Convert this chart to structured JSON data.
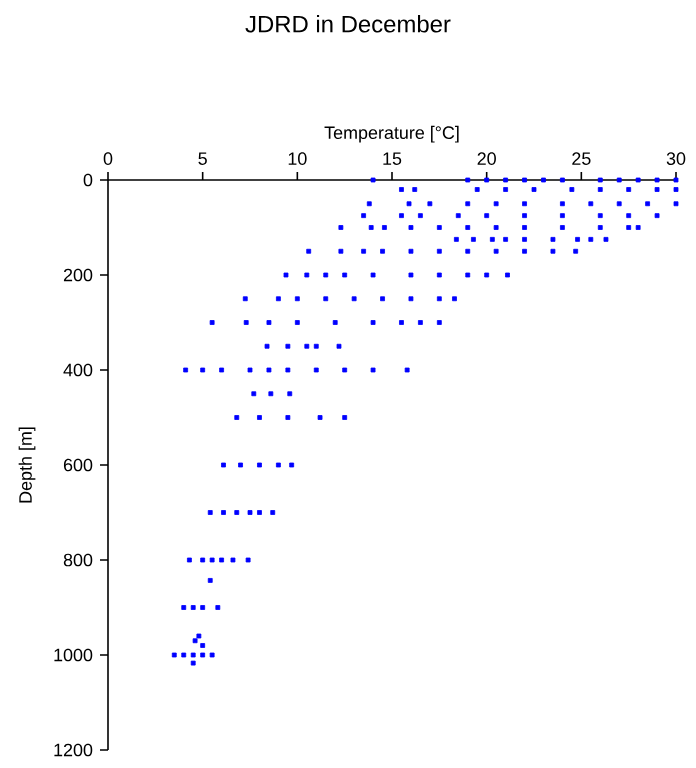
{
  "chart_data": {
    "type": "scatter",
    "title": "JDRD in December",
    "xlabel": "Temperature [°C]",
    "ylabel": "Depth [m]",
    "xlim": [
      0,
      30
    ],
    "ylim": [
      1200,
      0
    ],
    "xticks": [
      0,
      5,
      10,
      15,
      20,
      25,
      30
    ],
    "yticks": [
      0,
      200,
      400,
      600,
      800,
      1000,
      1200
    ],
    "marker": "square",
    "series": [
      {
        "color": "#0000ff",
        "x": [
          14,
          19,
          20,
          21,
          22,
          23,
          24,
          26,
          27,
          28,
          29,
          30,
          15.5,
          16.2,
          19.5,
          21,
          22.5,
          24.5,
          26,
          27.5,
          29,
          30,
          13.8,
          15.9,
          17,
          19,
          20.5,
          22,
          24,
          25.5,
          27,
          28.5,
          30,
          13.5,
          15.5,
          16.5,
          18.5,
          20,
          22,
          24,
          26,
          27.5,
          29,
          12.3,
          13.9,
          14.6,
          16,
          17.5,
          19,
          20.5,
          22,
          24,
          26,
          27.5,
          28,
          18.4,
          19.3,
          20.3,
          21,
          22,
          23.5,
          24.8,
          25.5,
          26.3,
          10.6,
          12.3,
          13.5,
          14.5,
          16,
          17.5,
          19,
          20.5,
          22,
          23.5,
          24.7,
          9.4,
          10.5,
          11.5,
          12.5,
          14,
          16,
          17.5,
          19,
          20,
          21.1,
          7.25,
          9,
          10,
          11.5,
          13,
          14.5,
          16,
          17.5,
          18.3,
          5.5,
          7.3,
          8.5,
          10,
          12,
          14,
          15.5,
          16.5,
          17.5,
          8.4,
          9.5,
          10.5,
          11,
          12.2,
          4.1,
          5,
          6,
          7.5,
          8.5,
          9.5,
          11,
          12.5,
          14,
          15.8,
          7.7,
          8.6,
          9.6,
          6.8,
          8,
          9.5,
          11.2,
          12.5,
          6.1,
          7,
          8,
          9,
          9.7,
          5.4,
          6.1,
          6.8,
          7.5,
          8,
          8.7,
          4.3,
          5,
          5.5,
          6,
          6.6,
          7.4,
          5.4,
          4,
          4.5,
          5,
          5.8,
          4.8,
          4.6,
          5,
          3.5,
          4,
          4.5,
          5,
          5.5,
          4.5
        ],
        "values": [
          0,
          0,
          0,
          0,
          0,
          0,
          0,
          0,
          0,
          0,
          0,
          0,
          20,
          20,
          20,
          20,
          20,
          20,
          20,
          20,
          20,
          20,
          50,
          50,
          50,
          50,
          50,
          50,
          50,
          50,
          50,
          50,
          50,
          75,
          75,
          75,
          75,
          75,
          75,
          75,
          75,
          75,
          75,
          100,
          100,
          100,
          100,
          100,
          100,
          100,
          100,
          100,
          100,
          100,
          100,
          125,
          125,
          125,
          125,
          125,
          125,
          125,
          125,
          125,
          150,
          150,
          150,
          150,
          150,
          150,
          150,
          150,
          150,
          150,
          150,
          200,
          200,
          200,
          200,
          200,
          200,
          200,
          200,
          200,
          200,
          250,
          250,
          250,
          250,
          250,
          250,
          250,
          250,
          250,
          300,
          300,
          300,
          300,
          300,
          300,
          300,
          300,
          300,
          350,
          350,
          350,
          350,
          350,
          400,
          400,
          400,
          400,
          400,
          400,
          400,
          400,
          400,
          400,
          450,
          450,
          450,
          500,
          500,
          500,
          500,
          500,
          600,
          600,
          600,
          600,
          600,
          700,
          700,
          700,
          700,
          700,
          700,
          800,
          800,
          800,
          800,
          800,
          800,
          843,
          900,
          900,
          900,
          900,
          960,
          970,
          980,
          1000,
          1000,
          1000,
          1000,
          1000,
          1017
        ]
      }
    ]
  }
}
